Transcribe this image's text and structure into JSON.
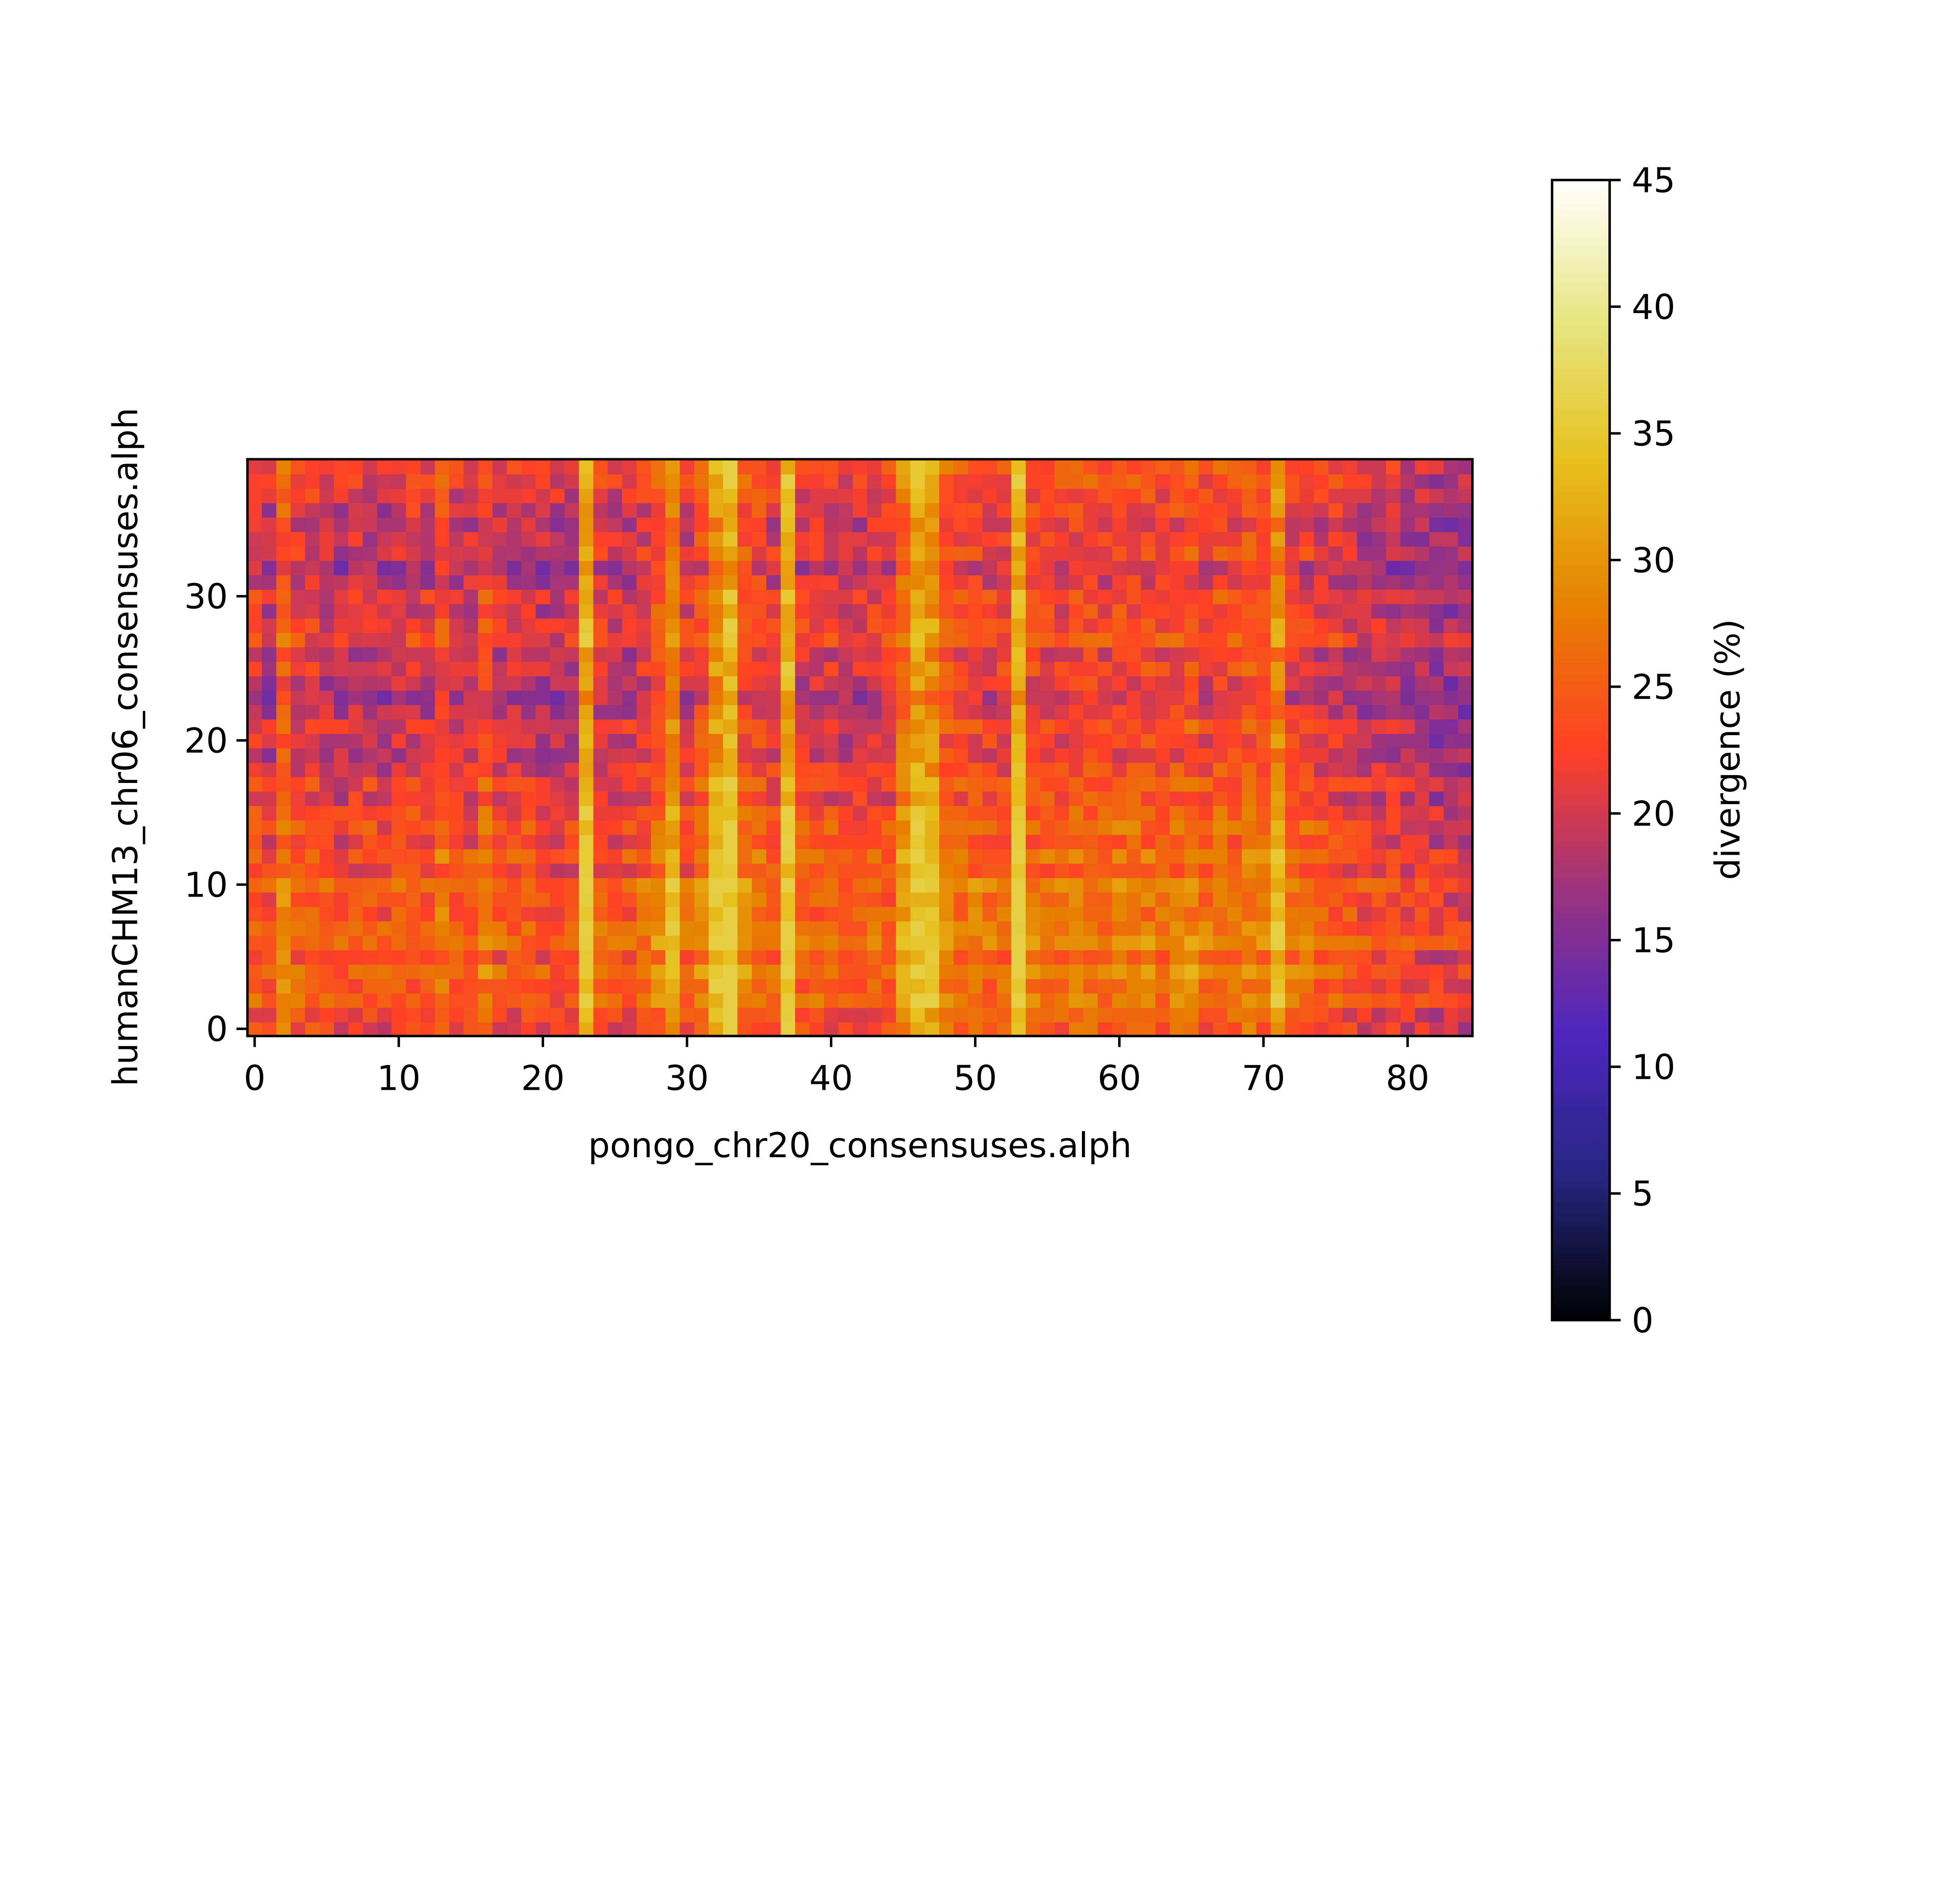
{
  "chart_data": {
    "type": "heatmap",
    "xlabel": "pongo_chr20_consensuses.alph",
    "ylabel": "humanCHM13_chr06_consensuses.alph",
    "colorbar_label": "divergence (%)",
    "colormap": "CMRmap",
    "n_cols": 85,
    "n_rows": 40,
    "xlim": [
      -0.5,
      84.5
    ],
    "ylim": [
      -0.5,
      39.5
    ],
    "x_ticks": [
      0,
      10,
      20,
      30,
      40,
      50,
      60,
      70,
      80
    ],
    "y_ticks": [
      0,
      10,
      20,
      30
    ],
    "vmin": 0,
    "vmax": 45,
    "colorbar_ticks": [
      0,
      5,
      10,
      15,
      20,
      25,
      30,
      35,
      40,
      45
    ],
    "value_range": [
      12,
      36
    ],
    "column_profile": [
      22,
      20,
      26,
      22,
      22,
      21,
      20,
      21,
      21,
      20,
      21,
      22,
      21,
      24,
      21,
      21,
      24,
      21,
      21,
      21,
      20,
      20,
      20,
      33,
      22,
      21,
      21,
      22,
      25,
      30,
      22,
      25,
      31,
      34,
      25,
      24,
      22,
      34,
      22,
      22,
      22,
      21,
      21,
      22,
      22,
      28,
      32,
      31,
      25,
      24,
      24,
      23,
      23,
      34,
      24,
      24,
      23,
      24,
      24,
      23,
      24,
      24,
      24,
      23,
      24,
      25,
      23,
      24,
      24,
      25,
      24,
      30,
      23,
      23,
      22,
      22,
      21,
      20,
      20,
      20,
      19,
      19,
      18,
      18,
      18
    ],
    "row_profile": [
      2,
      3,
      3,
      3,
      3,
      4,
      4,
      3,
      4,
      3,
      3,
      2,
      2,
      2,
      2,
      1,
      1,
      0,
      -1,
      -1,
      -2,
      -1,
      -2,
      -2,
      -1,
      -2,
      -2,
      -1,
      -2,
      -1,
      -1,
      -2,
      -2,
      -2,
      -1,
      -1,
      -2,
      -2,
      -1,
      -1
    ],
    "noise_amplitude": 6,
    "seed": 20
  }
}
